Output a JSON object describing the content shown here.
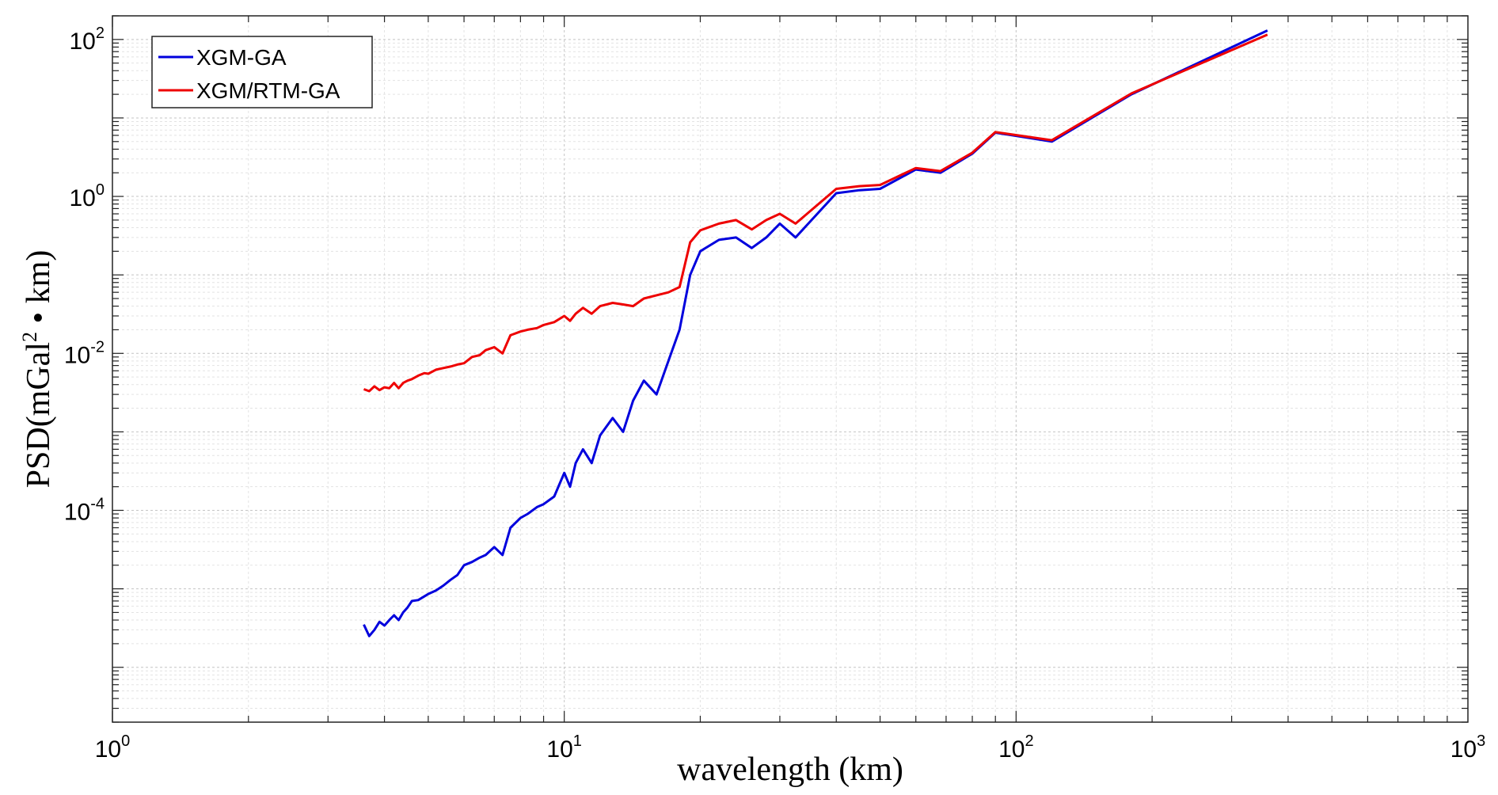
{
  "chart_data": {
    "type": "line",
    "xscale": "log",
    "yscale": "log",
    "xlabel": "wavelength (km)",
    "ylabel": {
      "prefix": "PSD(mGal",
      "sup": "2",
      "suffix": " • km)"
    },
    "xlim": [
      1,
      1000
    ],
    "ylim": [
      2e-07,
      200
    ],
    "grid": true,
    "legend_position": "top-left",
    "x_ticks": [
      {
        "value": 1,
        "base": "10",
        "exp": "0"
      },
      {
        "value": 10,
        "base": "10",
        "exp": "1"
      },
      {
        "value": 100,
        "base": "10",
        "exp": "2"
      },
      {
        "value": 1000,
        "base": "10",
        "exp": "3"
      }
    ],
    "y_ticks": [
      {
        "value": 0.0001,
        "base": "10",
        "exp": "-4"
      },
      {
        "value": 0.01,
        "base": "10",
        "exp": "-2"
      },
      {
        "value": 1,
        "base": "10",
        "exp": "0"
      },
      {
        "value": 100,
        "base": "10",
        "exp": "2"
      }
    ],
    "series": [
      {
        "name": "XGM-GA",
        "color": "#0000dd",
        "x": [
          3.6,
          3.7,
          3.8,
          3.9,
          4.0,
          4.1,
          4.2,
          4.3,
          4.4,
          4.5,
          4.6,
          4.75,
          4.9,
          5.0,
          5.2,
          5.4,
          5.6,
          5.8,
          6.0,
          6.25,
          6.5,
          6.7,
          7.0,
          7.3,
          7.6,
          8.0,
          8.3,
          8.7,
          9.0,
          9.5,
          10.0,
          10.3,
          10.6,
          11.0,
          11.5,
          12.0,
          12.8,
          13.5,
          14.2,
          15.0,
          16.0,
          17.0,
          18.0,
          19.0,
          20.0,
          22.0,
          24.0,
          26.0,
          28.0,
          30.0,
          32.5,
          40.0,
          45.0,
          50.0,
          60.0,
          68.0,
          80.0,
          90.0,
          120.0,
          180.0,
          360.0
        ],
        "values": [
          3.5e-06,
          2.5e-06,
          3e-06,
          3.8e-06,
          3.4e-06,
          4e-06,
          4.6e-06,
          4e-06,
          5e-06,
          5.8e-06,
          7e-06,
          7.2e-06,
          8e-06,
          8.6e-06,
          9.5e-06,
          1.1e-05,
          1.3e-05,
          1.5e-05,
          2e-05,
          2.2e-05,
          2.5e-05,
          2.7e-05,
          3.4e-05,
          2.7e-05,
          6e-05,
          8e-05,
          9e-05,
          0.00011,
          0.00012,
          0.00015,
          0.0003,
          0.0002,
          0.0004,
          0.0006,
          0.0004,
          0.0009,
          0.0015,
          0.001,
          0.0025,
          0.0045,
          0.003,
          0.008,
          0.02,
          0.1,
          0.2,
          0.28,
          0.3,
          0.22,
          0.3,
          0.45,
          0.3,
          1.1,
          1.2,
          1.25,
          2.2,
          2.0,
          3.5,
          6.5,
          5.0,
          20.0,
          130.0
        ]
      },
      {
        "name": "XGM/RTM-GA",
        "color": "#ee0000",
        "x": [
          3.6,
          3.7,
          3.8,
          3.9,
          4.0,
          4.1,
          4.2,
          4.3,
          4.4,
          4.5,
          4.6,
          4.75,
          4.9,
          5.0,
          5.2,
          5.4,
          5.6,
          5.8,
          6.0,
          6.25,
          6.5,
          6.7,
          7.0,
          7.3,
          7.6,
          8.0,
          8.3,
          8.7,
          9.0,
          9.5,
          10.0,
          10.3,
          10.6,
          11.0,
          11.5,
          12.0,
          12.8,
          13.5,
          14.2,
          15.0,
          16.0,
          17.0,
          18.0,
          19.0,
          20.0,
          22.0,
          24.0,
          26.0,
          28.0,
          30.0,
          32.5,
          40.0,
          45.0,
          50.0,
          60.0,
          68.0,
          80.0,
          90.0,
          120.0,
          180.0,
          360.0
        ],
        "values": [
          0.0035,
          0.0033,
          0.0038,
          0.0034,
          0.0037,
          0.0036,
          0.0042,
          0.0036,
          0.0042,
          0.0045,
          0.0047,
          0.0052,
          0.0056,
          0.0055,
          0.0062,
          0.0065,
          0.0068,
          0.0072,
          0.0075,
          0.009,
          0.0095,
          0.011,
          0.012,
          0.01,
          0.017,
          0.019,
          0.02,
          0.021,
          0.023,
          0.025,
          0.03,
          0.026,
          0.032,
          0.038,
          0.032,
          0.04,
          0.044,
          0.042,
          0.04,
          0.05,
          0.055,
          0.06,
          0.07,
          0.26,
          0.37,
          0.45,
          0.5,
          0.38,
          0.5,
          0.6,
          0.45,
          1.25,
          1.35,
          1.4,
          2.3,
          2.1,
          3.6,
          6.6,
          5.2,
          20.5,
          115.0
        ]
      }
    ]
  }
}
